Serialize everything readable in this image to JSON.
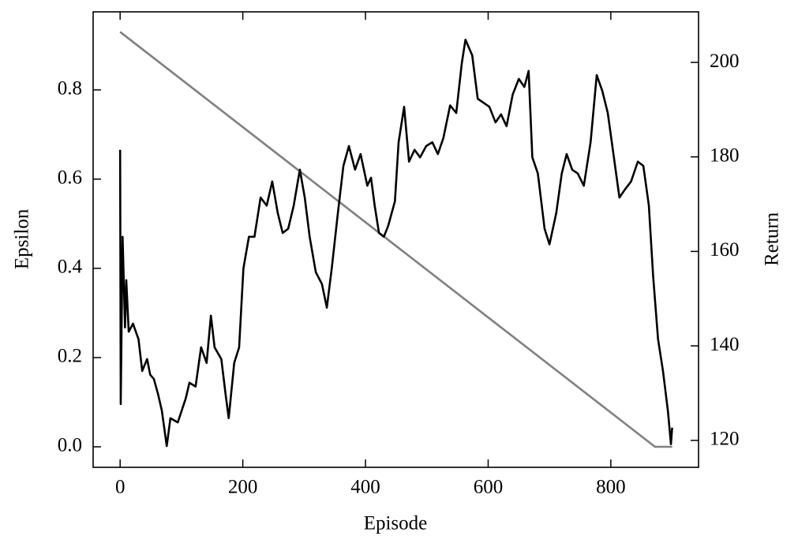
{
  "chart_data": {
    "type": "line",
    "x_label": "Episode",
    "y_label": "Epsilon",
    "y2_label": "Return",
    "xlim": [
      -44,
      943
    ],
    "xticks": [
      0,
      200,
      400,
      600,
      800
    ],
    "ylim": [
      -0.046,
      0.975
    ],
    "yticks": [
      {
        "value": 0,
        "label": "0.0"
      },
      0.2,
      0.4,
      0.6,
      0.8
    ],
    "y2lim": [
      114.3,
      210.7
    ],
    "y2ticks": [
      120,
      140,
      160,
      180,
      200
    ],
    "series": [
      {
        "name": "Epsilon",
        "color": "#808080",
        "x": [
          0,
          872,
          900
        ],
        "values": [
          0.93,
          0,
          0
        ]
      },
      {
        "name": "Return",
        "color": "#000000",
        "axis": "y2",
        "x": [
          0,
          1,
          4,
          8,
          10,
          14,
          21,
          30,
          36,
          44,
          49,
          55,
          62,
          68,
          76,
          82,
          94,
          107,
          113,
          123,
          132,
          141,
          148,
          154,
          165,
          172,
          177,
          186,
          194,
          201,
          210,
          219,
          229,
          239,
          248,
          257,
          265,
          274,
          283,
          293,
          301,
          309,
          319,
          329,
          337,
          345,
          355,
          364,
          373,
          383,
          392,
          403,
          409,
          415,
          422,
          430,
          437,
          448,
          454,
          463,
          471,
          480,
          489,
          499,
          509,
          518,
          527,
          538,
          548,
          557,
          563,
          574,
          583,
          592,
          602,
          612,
          621,
          630,
          640,
          650,
          659,
          666,
          672,
          681,
          692,
          700,
          711,
          720,
          728,
          737,
          746,
          756,
          767,
          777,
          786,
          795,
          805,
          814,
          823,
          833,
          844,
          853,
          862,
          869,
          877,
          885,
          893,
          898,
          900
        ],
        "values": [
          181.5,
          127.7,
          163.1,
          143.9,
          153.9,
          143,
          144.7,
          141.4,
          134.7,
          137.2,
          133.9,
          133,
          129.7,
          126.3,
          118.8,
          124.7,
          123.8,
          128.9,
          132.2,
          131.4,
          139.7,
          136.4,
          146.4,
          139.7,
          137.2,
          129.7,
          124.7,
          136.4,
          139.7,
          156.4,
          163.1,
          163.1,
          171.4,
          169.7,
          174.8,
          168.1,
          163.9,
          164.8,
          169.7,
          177.3,
          171.4,
          163.1,
          155.6,
          153.1,
          148.1,
          156.4,
          168.1,
          178.1,
          182.3,
          177.3,
          180.6,
          173.9,
          175.6,
          169.7,
          163.9,
          163.1,
          165.4,
          170.6,
          183.1,
          190.6,
          179,
          181.5,
          179.9,
          182.3,
          183.1,
          180.6,
          184,
          190.9,
          189.3,
          199.8,
          204.8,
          201.5,
          192.3,
          191.5,
          190.6,
          187.3,
          189,
          186.5,
          193.2,
          196.5,
          194.8,
          198.2,
          179.9,
          176.5,
          164.8,
          161.5,
          168.1,
          176.5,
          180.6,
          177.3,
          176.5,
          173.9,
          183.1,
          197.3,
          194,
          189.3,
          179.9,
          171.4,
          173.1,
          174.8,
          179,
          178.1,
          169.7,
          154.7,
          141.4,
          134.7,
          126.3,
          119.2,
          122.7
        ]
      }
    ]
  }
}
